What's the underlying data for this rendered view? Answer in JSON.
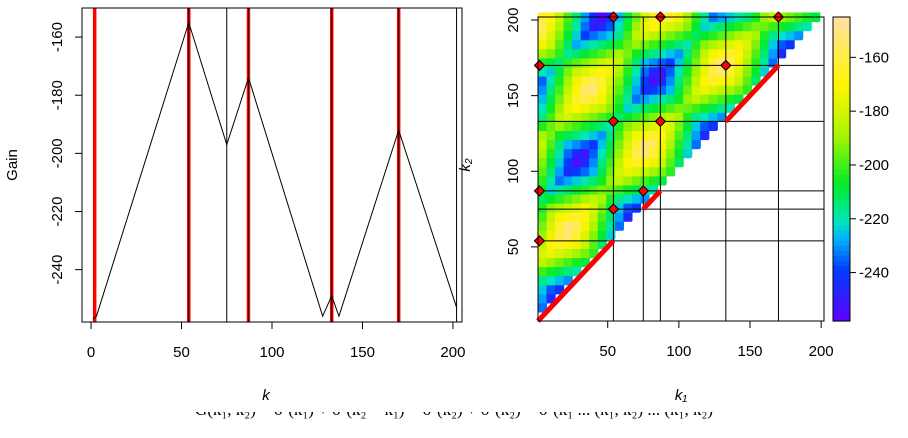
{
  "chart_data": [
    {
      "type": "line",
      "xlabel": "k",
      "ylabel": "Gain",
      "xlim": [
        -5,
        205
      ],
      "ylim": [
        -258,
        -150
      ],
      "x_ticks": [
        0,
        50,
        100,
        150,
        200
      ],
      "y_ticks": [
        -160,
        -180,
        -200,
        -220,
        -240
      ],
      "series": [
        {
          "x": [
            1,
            3,
            54,
            75,
            87,
            128,
            133,
            137,
            170,
            202
          ],
          "y": [
            -257,
            -256,
            -155,
            -197,
            -174,
            -256,
            -249,
            -256,
            -192,
            -253
          ]
        }
      ],
      "red_lines_x": [
        2,
        54,
        87,
        133,
        170
      ],
      "black_lines_x": [
        54,
        75,
        87,
        133,
        170,
        202
      ]
    },
    {
      "type": "heatmap",
      "xlabel": "k₁",
      "ylabel": "k₂",
      "xlim": [
        1,
        202
      ],
      "ylim": [
        1,
        202
      ],
      "x_ticks": [
        50,
        100,
        150,
        200
      ],
      "y_ticks": [
        50,
        100,
        150,
        200
      ],
      "colorbar_ticks": [
        -160,
        -180,
        -200,
        -220,
        -240
      ],
      "colorbar_range": [
        -258,
        -145
      ],
      "grid_x": [
        54,
        75,
        87,
        133,
        170,
        202
      ],
      "grid_y": [
        54,
        75,
        87,
        133,
        170,
        202
      ],
      "points": [
        [
          2,
          54
        ],
        [
          2,
          87
        ],
        [
          2,
          170
        ],
        [
          54,
          75
        ],
        [
          54,
          133
        ],
        [
          54,
          202
        ],
        [
          75,
          87
        ],
        [
          87,
          133
        ],
        [
          87,
          202
        ],
        [
          133,
          170
        ],
        [
          170,
          202
        ]
      ]
    }
  ],
  "formula": "G(k₁, k₂) = σ²(k₁) + σ²(k₂ − k₁) − σ²(k₂) + σ²(k₂) − σ²(k₁ ... (k₁, k₂) ... (k₁, k₂)"
}
